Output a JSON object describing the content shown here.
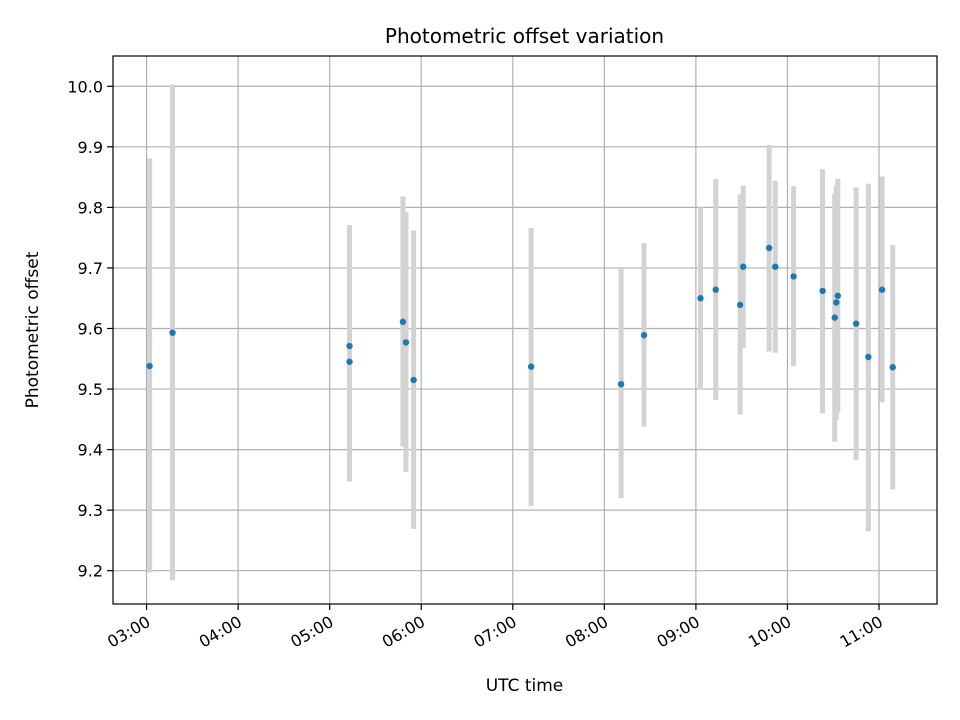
{
  "chart_data": {
    "type": "scatter",
    "title": "Photometric offset variation",
    "xlabel": "UTC time",
    "ylabel": "Photometric offset",
    "grid": true,
    "xlim": [
      "02:38",
      "11:38"
    ],
    "ylim": [
      9.145,
      10.05
    ],
    "x_ticks": [
      "03:00",
      "04:00",
      "05:00",
      "06:00",
      "07:00",
      "08:00",
      "09:00",
      "10:00",
      "11:00"
    ],
    "y_ticks": [
      9.2,
      9.3,
      9.4,
      9.5,
      9.6,
      9.7,
      9.8,
      9.9,
      10.0
    ],
    "y_tick_labels": [
      "9.2",
      "9.3",
      "9.4",
      "9.5",
      "9.6",
      "9.7",
      "9.8",
      "9.9",
      "10.0"
    ],
    "point_color": "#1f77b4",
    "errorbar_color": "#d3d3d3",
    "points": [
      {
        "x": "03:02",
        "y": 9.538,
        "ylow": 9.197,
        "yhigh": 9.881
      },
      {
        "x": "03:17",
        "y": 9.593,
        "ylow": 9.184,
        "yhigh": 10.003
      },
      {
        "x": "05:13",
        "y": 9.571,
        "ylow": 9.371,
        "yhigh": 9.771
      },
      {
        "x": "05:13",
        "y": 9.545,
        "ylow": 9.347,
        "yhigh": 9.744
      },
      {
        "x": "05:48",
        "y": 9.611,
        "ylow": 9.405,
        "yhigh": 9.818
      },
      {
        "x": "05:50",
        "y": 9.577,
        "ylow": 9.363,
        "yhigh": 9.792
      },
      {
        "x": "05:55",
        "y": 9.515,
        "ylow": 9.269,
        "yhigh": 9.762
      },
      {
        "x": "07:12",
        "y": 9.537,
        "ylow": 9.307,
        "yhigh": 9.766
      },
      {
        "x": "08:11",
        "y": 9.508,
        "ylow": 9.32,
        "yhigh": 9.7
      },
      {
        "x": "08:26",
        "y": 9.589,
        "ylow": 9.438,
        "yhigh": 9.741
      },
      {
        "x": "09:03",
        "y": 9.65,
        "ylow": 9.499,
        "yhigh": 9.8
      },
      {
        "x": "09:13",
        "y": 9.664,
        "ylow": 9.482,
        "yhigh": 9.847
      },
      {
        "x": "09:29",
        "y": 9.639,
        "ylow": 9.458,
        "yhigh": 9.821
      },
      {
        "x": "09:31",
        "y": 9.702,
        "ylow": 9.568,
        "yhigh": 9.836
      },
      {
        "x": "09:48",
        "y": 9.733,
        "ylow": 9.562,
        "yhigh": 9.903
      },
      {
        "x": "09:52",
        "y": 9.702,
        "ylow": 9.56,
        "yhigh": 9.844
      },
      {
        "x": "10:04",
        "y": 9.686,
        "ylow": 9.538,
        "yhigh": 9.835
      },
      {
        "x": "10:23",
        "y": 9.662,
        "ylow": 9.46,
        "yhigh": 9.863
      },
      {
        "x": "10:31",
        "y": 9.618,
        "ylow": 9.413,
        "yhigh": 9.822
      },
      {
        "x": "10:32",
        "y": 9.643,
        "ylow": 9.449,
        "yhigh": 9.836
      },
      {
        "x": "10:33",
        "y": 9.654,
        "ylow": 9.461,
        "yhigh": 9.847
      },
      {
        "x": "10:45",
        "y": 9.608,
        "ylow": 9.383,
        "yhigh": 9.833
      },
      {
        "x": "10:53",
        "y": 9.553,
        "ylow": 9.265,
        "yhigh": 9.839
      },
      {
        "x": "11:02",
        "y": 9.664,
        "ylow": 9.478,
        "yhigh": 9.851
      },
      {
        "x": "11:09",
        "y": 9.536,
        "ylow": 9.334,
        "yhigh": 9.738
      }
    ]
  }
}
